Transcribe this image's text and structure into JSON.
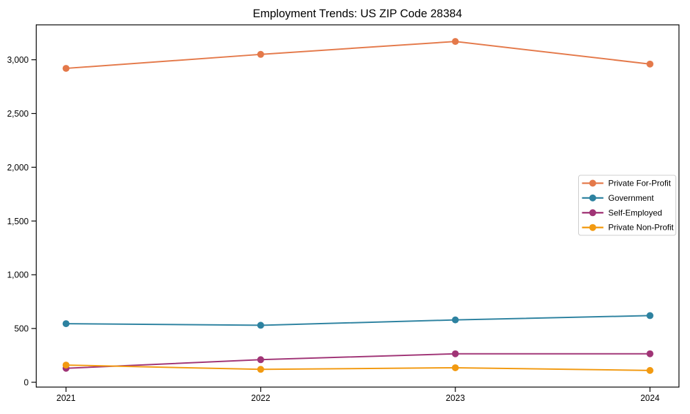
{
  "chart_data": {
    "type": "line",
    "title": "Employment Trends: US ZIP Code 28384",
    "categories": [
      "2021",
      "2022",
      "2023",
      "2024"
    ],
    "series": [
      {
        "name": "Private For-Profit",
        "color": "#e4794a",
        "values": [
          2920,
          3050,
          3170,
          2960
        ]
      },
      {
        "name": "Government",
        "color": "#2d82a0",
        "values": [
          545,
          530,
          580,
          620
        ]
      },
      {
        "name": "Self-Employed",
        "color": "#a03476",
        "values": [
          130,
          210,
          265,
          265
        ]
      },
      {
        "name": "Private Non-Profit",
        "color": "#f29a11",
        "values": [
          160,
          120,
          135,
          110
        ]
      }
    ],
    "xlabel": "",
    "ylabel": "",
    "ylim": [
      -45,
      3330
    ],
    "ytick_values": [
      0,
      500,
      1000,
      1500,
      2000,
      2500,
      3000
    ],
    "ytick_labels": [
      "0",
      "500",
      "1,000",
      "1,500",
      "2,000",
      "2,500",
      "3,000"
    ],
    "grid": false,
    "legend_position": "right-middle",
    "marker": "circle"
  }
}
